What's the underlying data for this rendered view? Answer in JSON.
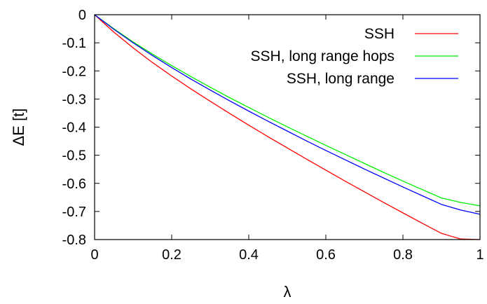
{
  "chart_data": {
    "type": "line",
    "xlabel": "λ",
    "ylabel": "ΔE [t]",
    "xlim": [
      0,
      1
    ],
    "ylim": [
      -0.8,
      0
    ],
    "x_ticks": [
      0,
      0.2,
      0.4,
      0.6,
      0.8,
      1
    ],
    "x_tick_labels": [
      "0",
      "0.2",
      "0.4",
      "0.6",
      "0.8",
      "1"
    ],
    "y_ticks": [
      0,
      -0.1,
      -0.2,
      -0.3,
      -0.4,
      -0.5,
      -0.6,
      -0.7,
      -0.8
    ],
    "y_tick_labels": [
      "0",
      "-0.1",
      "-0.2",
      "-0.3",
      "-0.4",
      "-0.5",
      "-0.6",
      "-0.7",
      "-0.8"
    ],
    "grid": false,
    "legend_position": "top-right",
    "x": [
      0,
      0.05,
      0.1,
      0.15,
      0.2,
      0.25,
      0.3,
      0.35,
      0.4,
      0.45,
      0.5,
      0.55,
      0.6,
      0.65,
      0.7,
      0.75,
      0.8,
      0.85,
      0.9,
      0.95,
      1
    ],
    "series": [
      {
        "name": "SSH",
        "color": "#ff0000",
        "values": [
          0,
          -0.062,
          -0.118,
          -0.17,
          -0.218,
          -0.264,
          -0.308,
          -0.351,
          -0.393,
          -0.434,
          -0.474,
          -0.514,
          -0.553,
          -0.592,
          -0.63,
          -0.668,
          -0.705,
          -0.742,
          -0.778,
          -0.798,
          -0.8
        ]
      },
      {
        "name": "SSH, long range hops",
        "color": "#00ee00",
        "values": [
          0,
          -0.05,
          -0.097,
          -0.14,
          -0.181,
          -0.22,
          -0.258,
          -0.295,
          -0.33,
          -0.365,
          -0.399,
          -0.432,
          -0.465,
          -0.497,
          -0.529,
          -0.561,
          -0.592,
          -0.622,
          -0.652,
          -0.668,
          -0.68
        ]
      },
      {
        "name": "SSH, long range",
        "color": "#0000ff",
        "values": [
          0,
          -0.052,
          -0.1,
          -0.145,
          -0.188,
          -0.229,
          -0.268,
          -0.306,
          -0.343,
          -0.379,
          -0.414,
          -0.449,
          -0.483,
          -0.516,
          -0.549,
          -0.581,
          -0.613,
          -0.644,
          -0.675,
          -0.695,
          -0.71
        ]
      }
    ]
  }
}
